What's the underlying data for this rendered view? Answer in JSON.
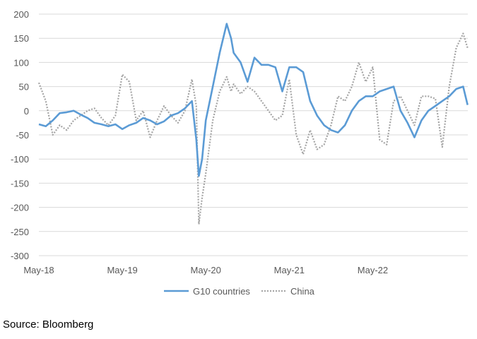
{
  "chart_data": {
    "type": "line",
    "title": "",
    "xlabel": "",
    "ylabel": "",
    "ylim": [
      -300,
      200
    ],
    "yticks": [
      200,
      150,
      100,
      50,
      0,
      -50,
      -100,
      -150,
      -200,
      -250,
      -300
    ],
    "xlim": [
      "2018-05",
      "2023-06"
    ],
    "xticks": [
      "May-18",
      "May-19",
      "May-20",
      "May-21",
      "May-22"
    ],
    "grid": "horizontal",
    "legend_position": "bottom",
    "source": "Source: Bloomberg",
    "series": [
      {
        "name": "G10 countries",
        "color": "#5B9BD5",
        "style": "solid",
        "points": [
          [
            "2018-05",
            -28
          ],
          [
            "2018-06",
            -32
          ],
          [
            "2018-07",
            -20
          ],
          [
            "2018-08",
            -5
          ],
          [
            "2018-09",
            -3
          ],
          [
            "2018-10",
            0
          ],
          [
            "2018-11",
            -8
          ],
          [
            "2018-12",
            -15
          ],
          [
            "2019-01",
            -25
          ],
          [
            "2019-02",
            -28
          ],
          [
            "2019-03",
            -32
          ],
          [
            "2019-04",
            -28
          ],
          [
            "2019-05",
            -38
          ],
          [
            "2019-06",
            -30
          ],
          [
            "2019-07",
            -25
          ],
          [
            "2019-08",
            -15
          ],
          [
            "2019-09",
            -20
          ],
          [
            "2019-10",
            -28
          ],
          [
            "2019-11",
            -22
          ],
          [
            "2019-12",
            -10
          ],
          [
            "2020-01",
            -5
          ],
          [
            "2020-02",
            5
          ],
          [
            "2020-03",
            20
          ],
          [
            "2020-03-20",
            -60
          ],
          [
            "2020-04",
            -135
          ],
          [
            "2020-04-15",
            -100
          ],
          [
            "2020-05",
            -20
          ],
          [
            "2020-06",
            50
          ],
          [
            "2020-07",
            120
          ],
          [
            "2020-08",
            180
          ],
          [
            "2020-08-20",
            150
          ],
          [
            "2020-09",
            120
          ],
          [
            "2020-10",
            100
          ],
          [
            "2020-11",
            60
          ],
          [
            "2020-12",
            110
          ],
          [
            "2021-01",
            95
          ],
          [
            "2021-02",
            95
          ],
          [
            "2021-03",
            90
          ],
          [
            "2021-04",
            40
          ],
          [
            "2021-05",
            90
          ],
          [
            "2021-06",
            90
          ],
          [
            "2021-07",
            80
          ],
          [
            "2021-08",
            20
          ],
          [
            "2021-09",
            -10
          ],
          [
            "2021-10",
            -30
          ],
          [
            "2021-11",
            -40
          ],
          [
            "2021-12",
            -45
          ],
          [
            "2022-01",
            -30
          ],
          [
            "2022-02",
            0
          ],
          [
            "2022-03",
            20
          ],
          [
            "2022-04",
            30
          ],
          [
            "2022-05",
            30
          ],
          [
            "2022-06",
            40
          ],
          [
            "2022-07",
            45
          ],
          [
            "2022-08",
            50
          ],
          [
            "2022-09",
            0
          ],
          [
            "2022-10",
            -25
          ],
          [
            "2022-11",
            -55
          ],
          [
            "2022-12",
            -20
          ],
          [
            "2023-01",
            0
          ],
          [
            "2023-02",
            10
          ],
          [
            "2023-03",
            20
          ],
          [
            "2023-04",
            30
          ],
          [
            "2023-05",
            45
          ],
          [
            "2023-06",
            50
          ],
          [
            "2023-06-20",
            12
          ]
        ]
      },
      {
        "name": "China",
        "color": "#A5A5A5",
        "style": "dotted",
        "points": [
          [
            "2018-05",
            58
          ],
          [
            "2018-06",
            20
          ],
          [
            "2018-07",
            -50
          ],
          [
            "2018-08",
            -30
          ],
          [
            "2018-09",
            -40
          ],
          [
            "2018-10",
            -20
          ],
          [
            "2018-11",
            -10
          ],
          [
            "2018-12",
            0
          ],
          [
            "2019-01",
            5
          ],
          [
            "2019-02",
            -15
          ],
          [
            "2019-03",
            -30
          ],
          [
            "2019-04",
            -10
          ],
          [
            "2019-05",
            75
          ],
          [
            "2019-06",
            60
          ],
          [
            "2019-07",
            -20
          ],
          [
            "2019-08",
            0
          ],
          [
            "2019-09",
            -55
          ],
          [
            "2019-10",
            -20
          ],
          [
            "2019-11",
            10
          ],
          [
            "2019-12",
            -10
          ],
          [
            "2020-01",
            -25
          ],
          [
            "2020-02",
            0
          ],
          [
            "2020-03",
            65
          ],
          [
            "2020-03-20",
            10
          ],
          [
            "2020-04",
            -235
          ],
          [
            "2020-04-15",
            -180
          ],
          [
            "2020-05",
            -130
          ],
          [
            "2020-06",
            -20
          ],
          [
            "2020-07",
            40
          ],
          [
            "2020-08",
            70
          ],
          [
            "2020-08-20",
            40
          ],
          [
            "2020-09",
            55
          ],
          [
            "2020-10",
            35
          ],
          [
            "2020-11",
            50
          ],
          [
            "2020-12",
            40
          ],
          [
            "2021-01",
            20
          ],
          [
            "2021-02",
            0
          ],
          [
            "2021-03",
            -20
          ],
          [
            "2021-04",
            -10
          ],
          [
            "2021-05",
            65
          ],
          [
            "2021-06",
            -50
          ],
          [
            "2021-07",
            -90
          ],
          [
            "2021-08",
            -40
          ],
          [
            "2021-09",
            -80
          ],
          [
            "2021-10",
            -70
          ],
          [
            "2021-11",
            -30
          ],
          [
            "2021-12",
            30
          ],
          [
            "2022-01",
            20
          ],
          [
            "2022-02",
            50
          ],
          [
            "2022-03",
            100
          ],
          [
            "2022-04",
            60
          ],
          [
            "2022-05",
            90
          ],
          [
            "2022-06",
            -60
          ],
          [
            "2022-07",
            -70
          ],
          [
            "2022-08",
            20
          ],
          [
            "2022-09",
            30
          ],
          [
            "2022-10",
            0
          ],
          [
            "2022-11",
            -30
          ],
          [
            "2022-12",
            30
          ],
          [
            "2023-01",
            30
          ],
          [
            "2023-02",
            25
          ],
          [
            "2023-03",
            -75
          ],
          [
            "2023-04",
            50
          ],
          [
            "2023-05",
            130
          ],
          [
            "2023-06",
            160
          ],
          [
            "2023-06-20",
            130
          ]
        ]
      }
    ]
  }
}
